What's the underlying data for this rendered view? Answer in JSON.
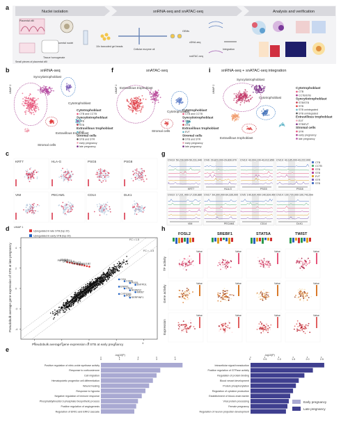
{
  "panels": {
    "a": {
      "letter": "a",
      "headers": [
        "Nuclei isolation",
        "snRNA-seq and snATAC-seq",
        "Analysis and verification"
      ],
      "labels": [
        "Placental villi",
        "Placental nuclei",
        "Tissue homogenate",
        "Small pieces of placental villi",
        "10x barcoded gel beads",
        "Cellular enzyme oil",
        "GEMs",
        "cDNA-seq",
        "snATAC-seq",
        "Integration"
      ]
    },
    "b": {
      "letter": "b",
      "title": "snRNA-seq",
      "umap2": "UMAP 2",
      "umap1": "UMAP 1",
      "annotations": [
        "Syncytiotrophoblast",
        "Cytotrophoblast",
        "Extravillous trophoblast",
        "Stromal cells"
      ]
    },
    "f": {
      "letter": "f",
      "title": "snATAC-seq",
      "umap2": "UMAP 2",
      "umap1": "UMAP 1",
      "annotations": [
        "Extravillous trophoblast",
        "Cytotrophoblast",
        "Stromal cells"
      ]
    },
    "i": {
      "letter": "i",
      "title": "snRNA-seq + snATAC-seq integration",
      "umap2": "UMAP 2",
      "umap1": "UMAP 1",
      "annotations": [
        "Syncytiotrophoblast",
        "Cytotrophoblast",
        "Extravillous trophoblast"
      ]
    },
    "legend_b": {
      "items": [
        "Cytotrophoblast",
        "CTB and CCTB",
        "Syncytiotrophoblast",
        "STB",
        "STB",
        "Extravillous trophoblast",
        "EVT",
        "Stromal cells",
        "STB and STR",
        "early pregnancy",
        "late pregnancy"
      ]
    },
    "legend_f": {
      "items": [
        "Cytotrophoblast",
        "CTB and CCTB",
        "Syncytiotrophoblast",
        "STB",
        "STB",
        "Extravillous trophoblast",
        "EVT",
        "Stromal cells",
        "STB and STR",
        "early pregnancy",
        "late pregnancy"
      ]
    },
    "legend_i": {
      "items": [
        "Cytotrophoblast",
        "CTB",
        "CCTB/STB",
        "Syncytiotrophoblast",
        "STB/STB",
        "STB",
        "STB unintegrated",
        "STB unintegrated",
        "Extravillous trophoblast",
        "EVT",
        "STB/EVT",
        "Stromal cells",
        "STR",
        "early pregnancy",
        "late pregnancy"
      ]
    },
    "c": {
      "letter": "c",
      "genes": [
        "KRT7",
        "HLA-G",
        "PSG5",
        "PSG8",
        "VIM",
        "PECAM1",
        "CD14",
        "DLK1"
      ],
      "umap1": "UMAP 1",
      "umap2": "UMAP 2"
    },
    "g": {
      "letter": "g",
      "track_titles": [
        "Chr19: 50,228,600-50,231,940",
        "Chr6: 29,823,000-29,830,070",
        "Chr19: 43,004,100-43,012,850",
        "Chr19: 43,185,000-43,222,000",
        "Chr10: 17,221,400-17,230,880",
        "Chr17: 64,300,000-64,335,000",
        "Chr5: 140,630,400-140,634,400",
        "Chr14: 100,720,000-100,743,000"
      ],
      "gene_labels": [
        "KRT7",
        "HLA-G",
        "PSG5",
        "PSG8",
        "VIM",
        "PECAM1",
        "CD14",
        "DLK1"
      ],
      "legend": [
        "CTB",
        "CCTB",
        "STB",
        "STB",
        "EVT",
        "STR",
        "STB"
      ]
    },
    "d": {
      "letter": "d",
      "legend": [
        "Upregulated in late STB (top 20)",
        "Upregulated in early STB (top 20)"
      ],
      "fc_pos": "FC = 1.5",
      "fc_neg": "FC = -1.5",
      "xlabel": "Pseudobulk average gene expression of STB at early pregnancy",
      "ylabel": "Pseudobulk average gene expression of STB at late pregnancy",
      "xticks": [
        "-4",
        "-2",
        "0",
        "2",
        "4"
      ],
      "yticks": [
        "-4",
        "-2",
        "0",
        "2",
        "4"
      ],
      "red_genes": [
        "PAPPA2",
        "GDF15",
        "CRH",
        "KISS1",
        "FSTL3",
        "LEP",
        "INHBA",
        "TAC3",
        "PAPPA",
        "HSD11B2"
      ],
      "blue_genes": [
        "CGA",
        "CGB5",
        "PSG5",
        "ENTPD1",
        "ENPP1",
        "CSH2",
        "ADAM12",
        "MKI67",
        "CYP19A1",
        "PGF",
        "SERPINF1"
      ]
    },
    "h": {
      "letter": "h",
      "tfs": [
        "FOSL2",
        "SREBF1",
        "STAT5A",
        "TWIST"
      ],
      "rows": [
        "TF activity",
        "Gene activity",
        "Expression"
      ],
      "scale_title": "Value"
    },
    "e": {
      "letter": "e",
      "axis_label": "-log10(P)",
      "left_ticks": [
        "0",
        "1",
        "2",
        "3",
        "4"
      ],
      "right_ticks": [
        "0",
        "0.5",
        "1.0",
        "1.5",
        "2.0",
        "2.5"
      ],
      "early_terms": [
        "Positive regulation of nitric-oxide synthase activity",
        "Response to corticosterone",
        "Cell migration",
        "Hematopoietic progenitor cell differentiation",
        "Wound healing",
        "Response to hypoxia",
        "Negative regulation of immune response",
        "Phosphatidylinositol 3-phosphate biosynthetic process",
        "Positive regulation of angiogenesis",
        "Regulation of ERK1 and ERK2 cascade"
      ],
      "early_values": [
        4.4,
        3.2,
        3.0,
        2.8,
        2.6,
        2.4,
        2.2,
        2.0,
        1.9,
        1.8
      ],
      "late_terms": [
        "Intracellular signal transduction",
        "Positive regulation of GTPase activity",
        "Regulation of protein binding",
        "Blood vessel development",
        "Protein phosphorylation",
        "Regulation of cytokine production",
        "Establishment of blood–brain barrier",
        "Viral protein processing",
        "Female pregnancy",
        "Regulation of neuron projection development"
      ],
      "late_values": [
        2.6,
        2.2,
        1.9,
        1.7,
        1.6,
        1.5,
        1.4,
        1.35,
        1.3,
        1.25
      ],
      "legend": [
        "Early pregnancy",
        "Late pregnancy"
      ],
      "colors": {
        "early": "#a9a9d2",
        "late": "#3f3f8f"
      }
    }
  }
}
